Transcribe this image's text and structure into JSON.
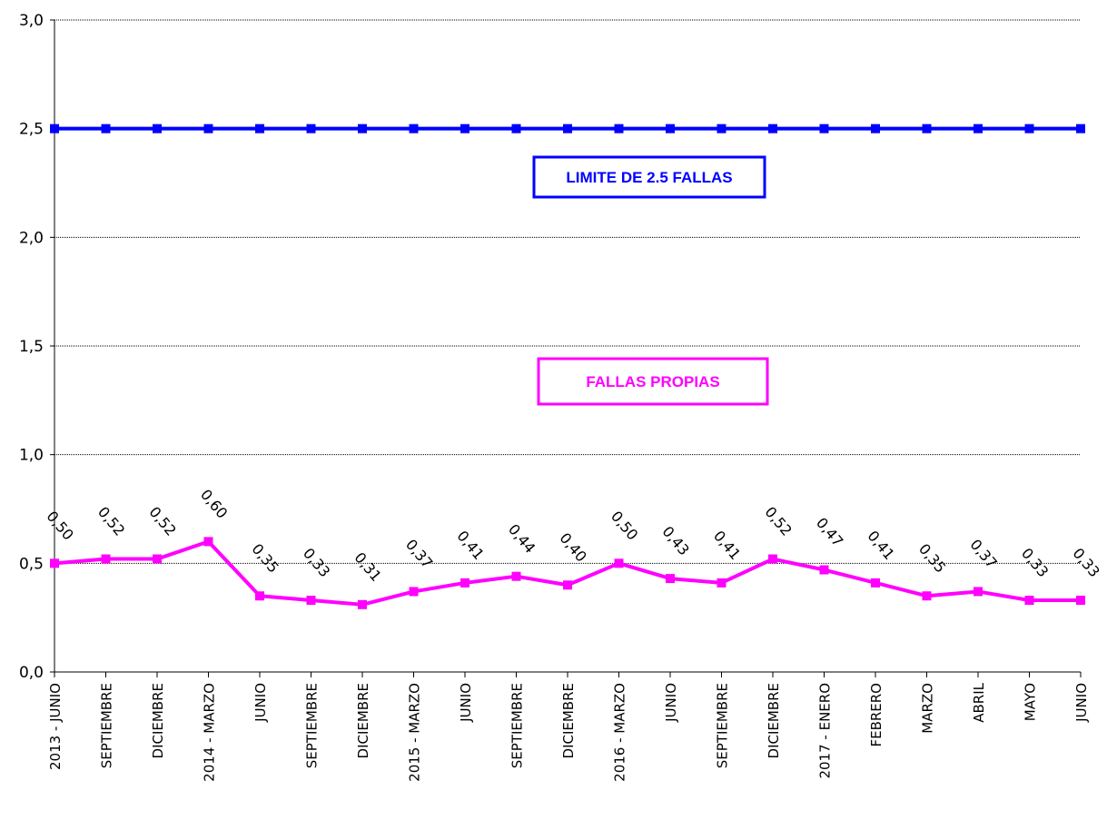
{
  "chart_data": {
    "type": "line",
    "categories": [
      "2013 - JUNIO",
      "SEPTIEMBRE",
      "DICIEMBRE",
      "2014 - MARZO",
      "JUNIO",
      "SEPTIEMBRE",
      "DICIEMBRE",
      "2015 - MARZO",
      "JUNIO",
      "SEPTIEMBRE",
      "DICIEMBRE",
      "2016 - MARZO",
      "JUNIO",
      "SEPTIEMBRE",
      "DICIEMBRE",
      "2017 - ENERO",
      "FEBRERO",
      "MARZO",
      "ABRIL",
      "MAYO",
      "JUNIO"
    ],
    "series": [
      {
        "name": "LIMITE DE 2.5 FALLAS",
        "color": "#0000ff",
        "values": [
          2.5,
          2.5,
          2.5,
          2.5,
          2.5,
          2.5,
          2.5,
          2.5,
          2.5,
          2.5,
          2.5,
          2.5,
          2.5,
          2.5,
          2.5,
          2.5,
          2.5,
          2.5,
          2.5,
          2.5,
          2.5
        ]
      },
      {
        "name": "FALLAS PROPIAS",
        "color": "#ff00ff",
        "values": [
          0.5,
          0.52,
          0.52,
          0.6,
          0.35,
          0.33,
          0.31,
          0.37,
          0.41,
          0.44,
          0.4,
          0.5,
          0.43,
          0.41,
          0.52,
          0.47,
          0.41,
          0.35,
          0.37,
          0.33,
          0.33
        ],
        "labels": [
          "0,50",
          "0,52",
          "0,52",
          "0,60",
          "0,35",
          "0,33",
          "0,31",
          "0,37",
          "0,41",
          "0,44",
          "0,40",
          "0,50",
          "0,43",
          "0,41",
          "0,52",
          "0,47",
          "0,41",
          "0,35",
          "0,37",
          "0,33",
          "0,33"
        ]
      }
    ],
    "ylim": [
      0,
      3.0
    ],
    "yticks": [
      0.0,
      0.5,
      1.0,
      1.5,
      2.0,
      2.5,
      3.0
    ],
    "ytick_labels": [
      "0,0",
      "0,5",
      "1,0",
      "1,5",
      "2,0",
      "2,5",
      "3,0"
    ],
    "grid": true,
    "title": "",
    "xlabel": "",
    "ylabel": ""
  }
}
